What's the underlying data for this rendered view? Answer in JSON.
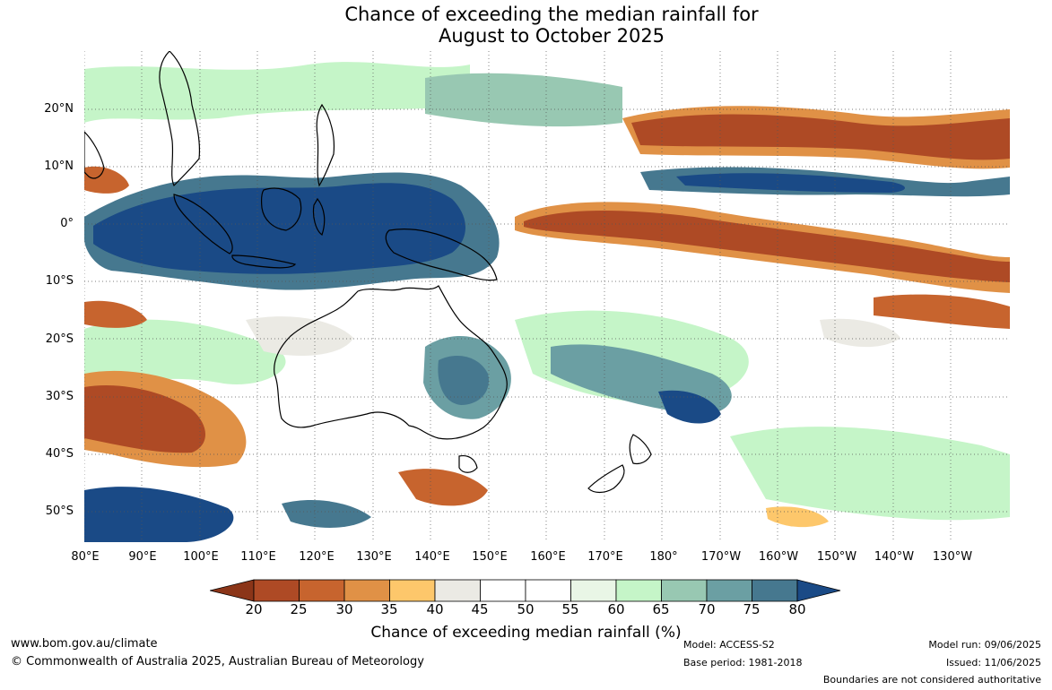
{
  "title": {
    "line1": "Chance of exceeding the median rainfall for",
    "line2": "August to October 2025"
  },
  "map": {
    "region": "Indo-Pacific and Australia",
    "lat_labels": [
      "20°N",
      "10°N",
      "0°",
      "10°S",
      "20°S",
      "30°S",
      "40°S",
      "50°S"
    ],
    "lon_labels": [
      "80°E",
      "90°E",
      "100°E",
      "110°E",
      "120°E",
      "130°E",
      "140°E",
      "150°E",
      "160°E",
      "170°E",
      "180°",
      "170°W",
      "160°W",
      "150°W",
      "140°W",
      "130°W"
    ],
    "grid_lines": "dotted"
  },
  "colorbar": {
    "ticks": [
      "20",
      "25",
      "30",
      "35",
      "40",
      "45",
      "50",
      "55",
      "60",
      "65",
      "70",
      "75",
      "80"
    ],
    "colors": [
      "#8b3518",
      "#ae4a25",
      "#c7642e",
      "#e09146",
      "#fdc76b",
      "#ebeae4",
      "#ffffff",
      "#ffffff",
      "#e9f6e6",
      "#c5f5c8",
      "#98c8b2",
      "#6b9fa3",
      "#46788f",
      "#1a4a86"
    ],
    "label": "Chance of exceeding median rainfall (%)"
  },
  "footer": {
    "website": "www.bom.gov.au/climate",
    "copyright": "© Commonwealth of Australia 2025, Australian Bureau of Meteorology",
    "model": "Model: ACCESS-S2",
    "base_period": "Base period: 1981-2018",
    "model_run": "Model run: 09/06/2025",
    "issued": "Issued: 11/06/2025",
    "disclaimer": "Boundaries are not considered authoritative"
  }
}
